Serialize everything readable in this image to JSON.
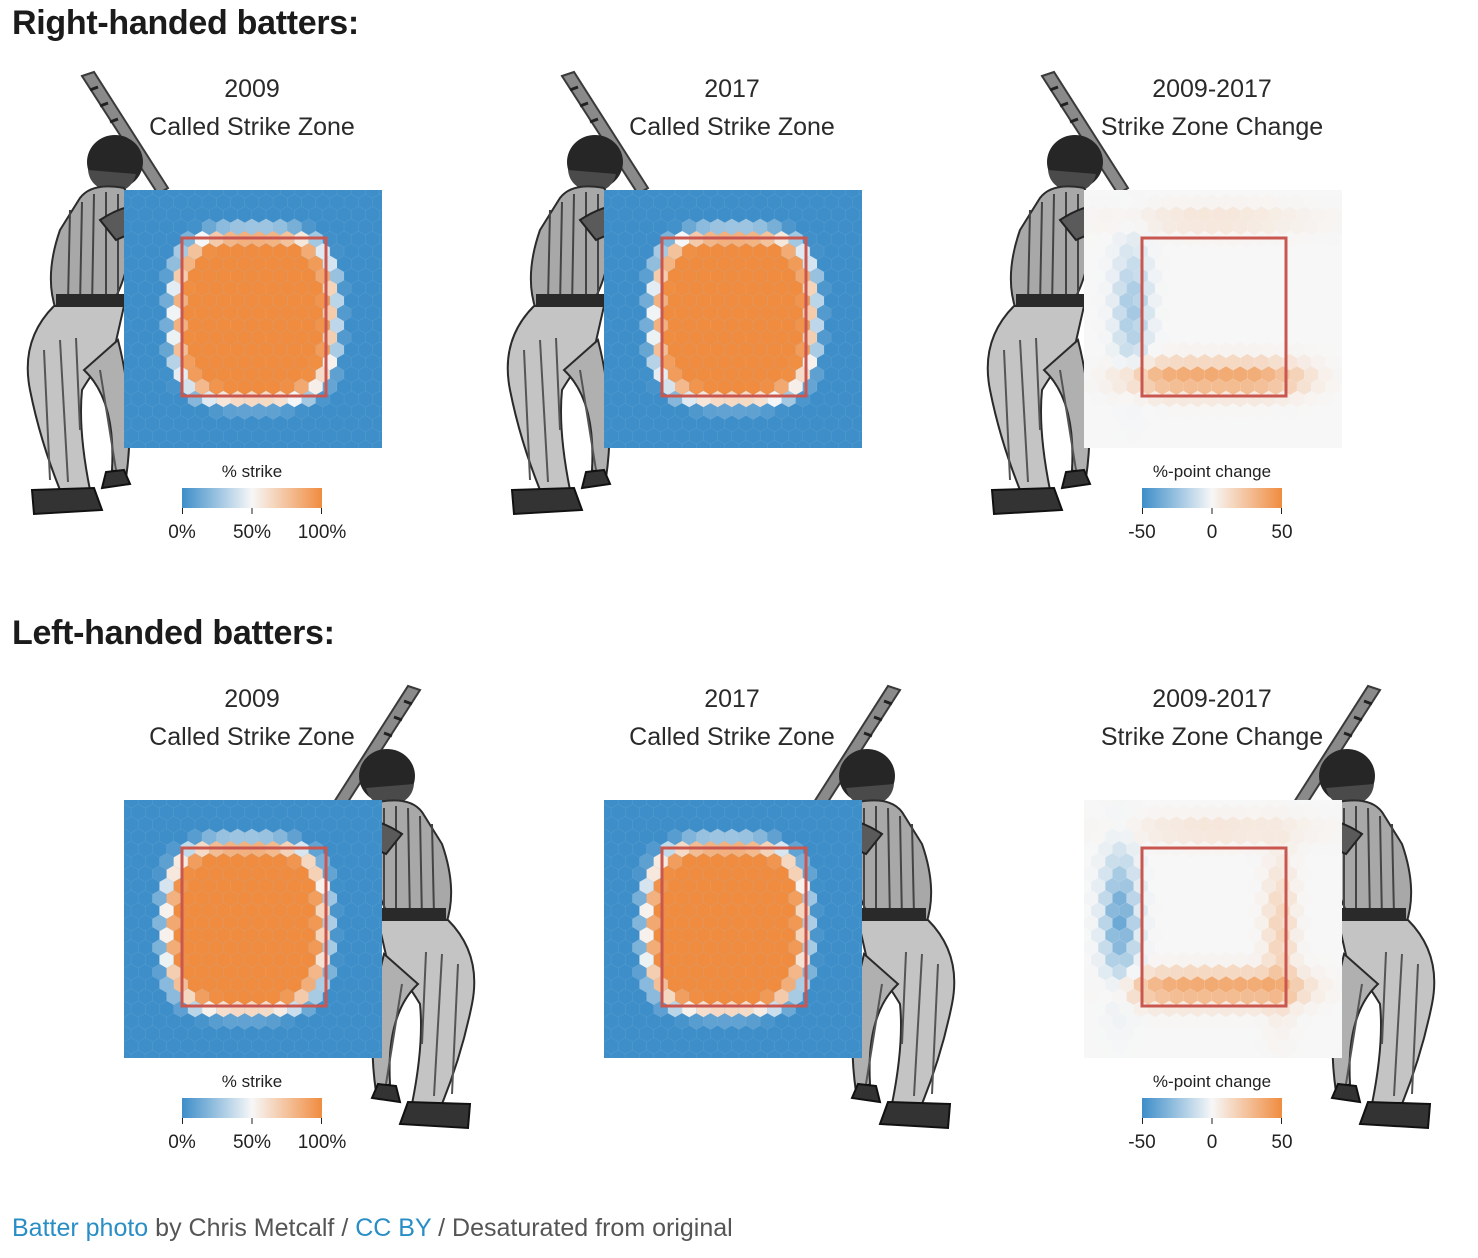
{
  "sections": [
    {
      "heading": "Right-handed batters:",
      "panels": [
        {
          "title_line1": "2009",
          "title_line2": "Called Strike Zone",
          "kind": "rate"
        },
        {
          "title_line1": "2017",
          "title_line2": "Called Strike Zone",
          "kind": "rate"
        },
        {
          "title_line1": "2009-2017",
          "title_line2": "Strike Zone Change",
          "kind": "change"
        }
      ]
    },
    {
      "heading": "Left-handed batters:",
      "panels": [
        {
          "title_line1": "2009",
          "title_line2": "Called Strike Zone",
          "kind": "rate"
        },
        {
          "title_line1": "2017",
          "title_line2": "Called Strike Zone",
          "kind": "rate"
        },
        {
          "title_line1": "2009-2017",
          "title_line2": "Strike Zone Change",
          "kind": "change"
        }
      ]
    }
  ],
  "legends": {
    "rate": {
      "title": "% strike",
      "ticks": [
        "0%",
        "50%",
        "100%"
      ]
    },
    "change": {
      "title": "%-point change",
      "ticks": [
        "-50",
        "0",
        "50"
      ]
    }
  },
  "credits": {
    "photo_link": "Batter photo",
    "by_text": " by Chris Metcalf / ",
    "license_link": "CC BY",
    "suffix": " / Desaturated from original"
  },
  "colors": {
    "low": "#3d8ec9",
    "mid": "#f7f7f7",
    "high": "#f08c3f",
    "zone_box": "#c9574f"
  },
  "chart_data": [
    {
      "type": "heatmap",
      "title": "2009 Called Strike Zone",
      "batter": "right-handed",
      "value": "% strike",
      "scale": [
        0,
        100
      ],
      "strike_zone_outline": true
    },
    {
      "type": "heatmap",
      "title": "2017 Called Strike Zone",
      "batter": "right-handed",
      "value": "% strike",
      "scale": [
        0,
        100
      ],
      "strike_zone_outline": true
    },
    {
      "type": "heatmap",
      "title": "2009-2017 Strike Zone Change",
      "batter": "right-handed",
      "value": "%-point change",
      "scale": [
        -50,
        50
      ],
      "strike_zone_outline": true
    },
    {
      "type": "heatmap",
      "title": "2009 Called Strike Zone",
      "batter": "left-handed",
      "value": "% strike",
      "scale": [
        0,
        100
      ],
      "strike_zone_outline": true
    },
    {
      "type": "heatmap",
      "title": "2017 Called Strike Zone",
      "batter": "left-handed",
      "value": "% strike",
      "scale": [
        0,
        100
      ],
      "strike_zone_outline": true
    },
    {
      "type": "heatmap",
      "title": "2009-2017 Strike Zone Change",
      "batter": "left-handed",
      "value": "%-point change",
      "scale": [
        -50,
        50
      ],
      "strike_zone_outline": true
    }
  ]
}
